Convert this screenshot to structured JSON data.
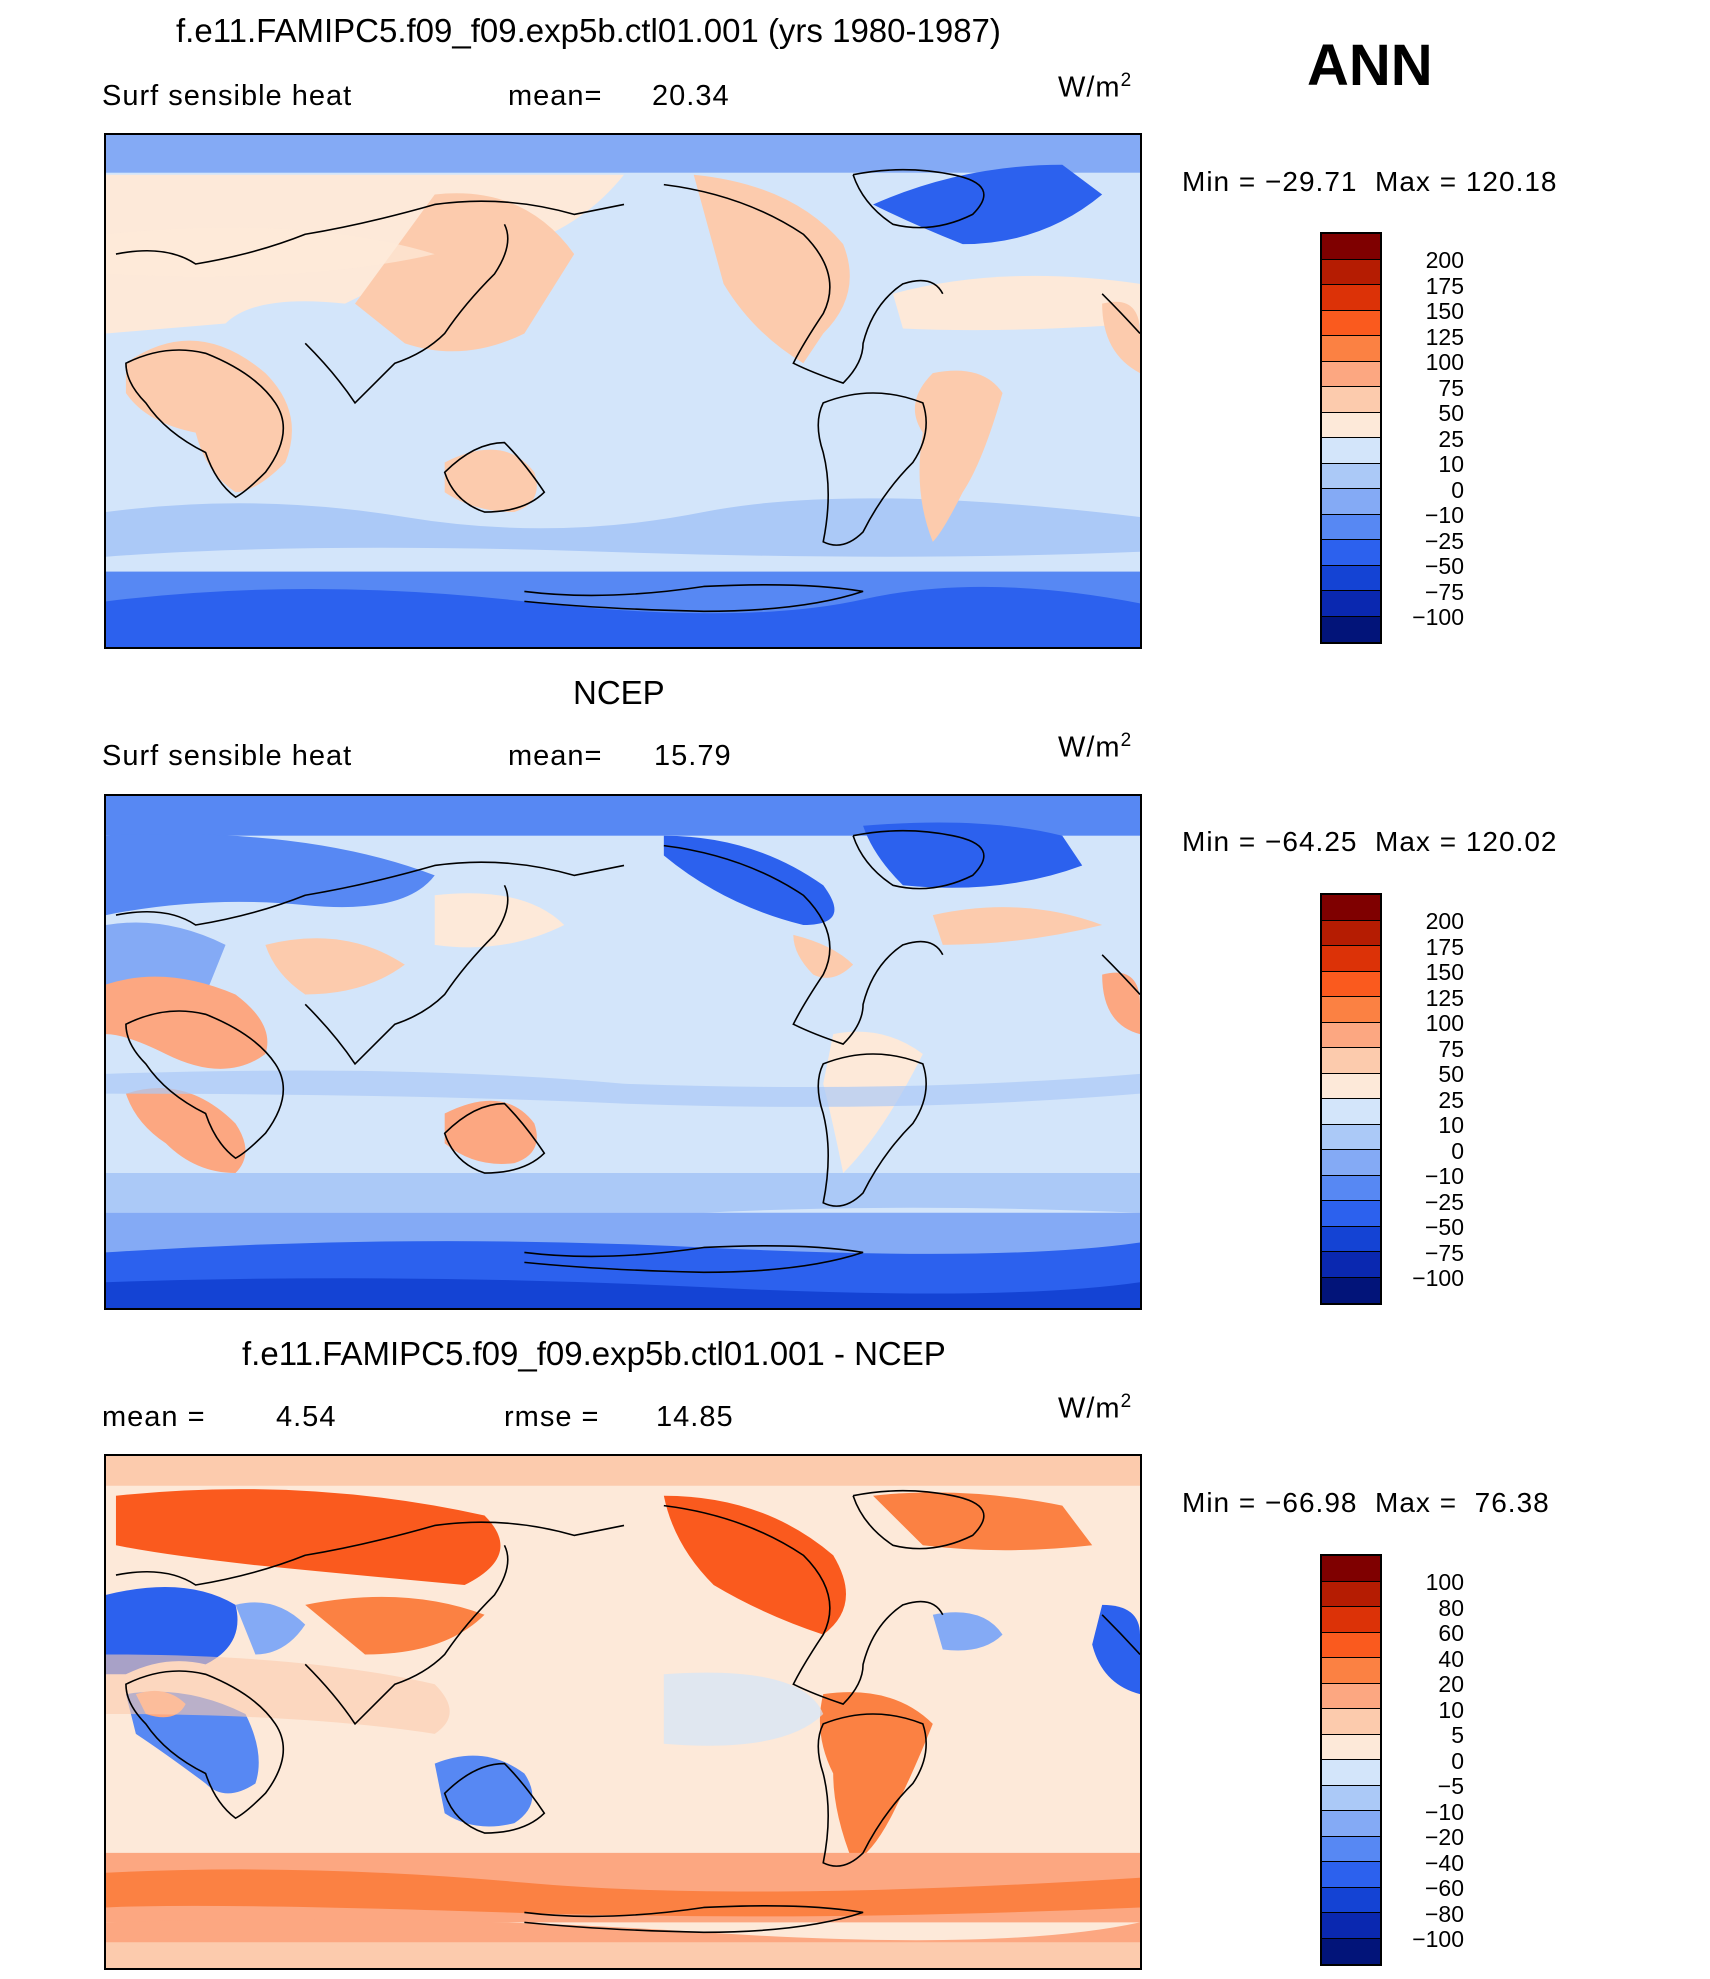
{
  "season": "ANN",
  "units": {
    "base": "W/m",
    "exp": "2"
  },
  "panels": [
    {
      "title": "f.e11.FAMIPC5.f09_f09.exp5b.ctl01.001 (yrs 1980-1987)",
      "left_label": "Surf sensible heat",
      "stat1_label": "mean=",
      "stat1_value": "20.34",
      "stat2_label": "",
      "stat2_value": "",
      "min_label": "Min",
      "min_value": "−29.71",
      "max_label": "Max",
      "max_value": "120.18",
      "levels": [
        "200",
        "175",
        "150",
        "125",
        "100",
        "75",
        "50",
        "25",
        "10",
        "0",
        "−10",
        "−25",
        "−50",
        "−75",
        "−100"
      ]
    },
    {
      "title": "NCEP",
      "left_label": "Surf sensible heat",
      "stat1_label": "mean=",
      "stat1_value": "15.79",
      "stat2_label": "",
      "stat2_value": "",
      "min_label": "Min",
      "min_value": "−64.25",
      "max_label": "Max",
      "max_value": "120.02",
      "levels": [
        "200",
        "175",
        "150",
        "125",
        "100",
        "75",
        "50",
        "25",
        "10",
        "0",
        "−10",
        "−25",
        "−50",
        "−75",
        "−100"
      ]
    },
    {
      "title": "f.e11.FAMIPC5.f09_f09.exp5b.ctl01.001 - NCEP",
      "left_label": "mean =",
      "stat1_label": "",
      "stat1_value": "4.54",
      "stat2_label": "rmse =",
      "stat2_value": "14.85",
      "min_label": "Min",
      "min_value": "−66.98",
      "max_label": "Max",
      "max_value": "76.38",
      "levels": [
        "100",
        "80",
        "60",
        "40",
        "20",
        "10",
        "5",
        "0",
        "−5",
        "−10",
        "−20",
        "−40",
        "−60",
        "−80",
        "−100"
      ]
    }
  ],
  "colors": {
    "swatches": [
      "#7f0000",
      "#b51c02",
      "#dc3207",
      "#fa5a1e",
      "#fb8143",
      "#fca781",
      "#fccbad",
      "#fde9d9",
      "#d3e5fa",
      "#abc9f7",
      "#84aaf5",
      "#5788f3",
      "#2c61ee",
      "#1443d4",
      "#0a28b0",
      "#021479"
    ]
  }
}
